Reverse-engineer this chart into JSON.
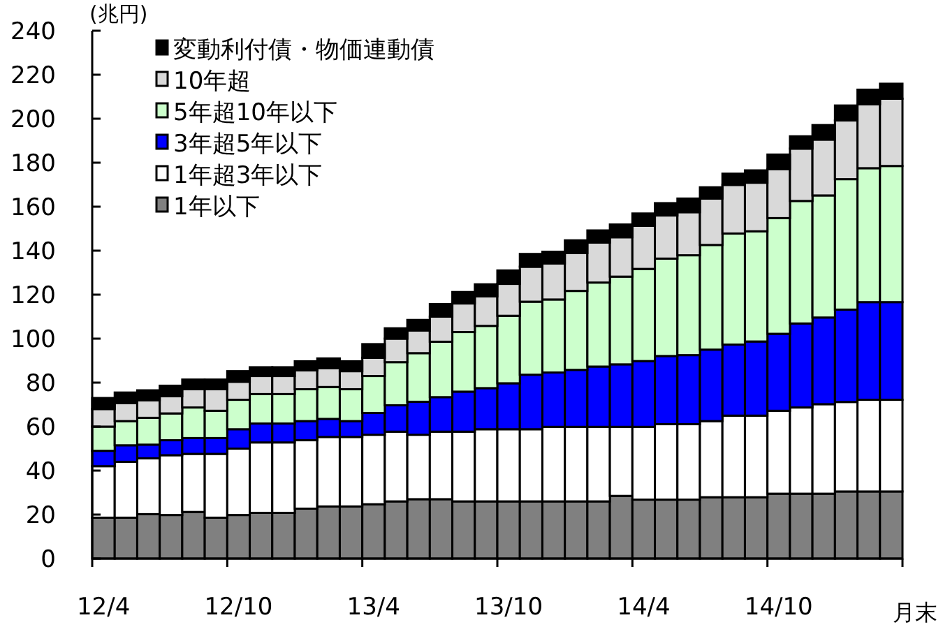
{
  "chart_data": {
    "type": "bar",
    "stacked": true,
    "ylabel": "(兆円)",
    "xlabel": "月末",
    "ylim": [
      0,
      240
    ],
    "yticks": [
      0,
      20,
      40,
      60,
      80,
      100,
      120,
      140,
      160,
      180,
      200,
      220,
      240
    ],
    "grid": false,
    "legend": "top left",
    "categories": [
      "12/4",
      null,
      null,
      null,
      null,
      null,
      "12/10",
      null,
      null,
      null,
      null,
      null,
      "13/4",
      null,
      null,
      null,
      null,
      null,
      "13/10",
      null,
      null,
      null,
      null,
      null,
      "14/4",
      null,
      null,
      null,
      null,
      null,
      "14/10",
      null,
      null,
      null,
      null,
      null
    ],
    "series": [
      {
        "name": "1年以下",
        "color": "#808080",
        "values": [
          18.6,
          18.6,
          20.2,
          19.8,
          21.2,
          18.6,
          19.8,
          20.8,
          20.8,
          22.7,
          23.7,
          23.7,
          24.7,
          26,
          27,
          27,
          26,
          26,
          26,
          26,
          26,
          26,
          26,
          28.5,
          26.8,
          26.8,
          26.8,
          27.9,
          27.9,
          27.9,
          29.5,
          29.5,
          29.5,
          30.5,
          30.5,
          30.5
        ]
      },
      {
        "name": "1年超3年以下",
        "color": "#ffffff",
        "values": [
          23.4,
          25.4,
          25.4,
          27.2,
          26.4,
          29,
          30.2,
          32,
          32,
          31.1,
          31.6,
          31.6,
          31.6,
          31.7,
          29.3,
          30.7,
          31.7,
          32.8,
          32.8,
          32.8,
          33.9,
          33.9,
          33.9,
          31.4,
          33.1,
          34.3,
          34.3,
          34.6,
          37.1,
          37.1,
          37.7,
          39.2,
          40.7,
          40.7,
          41.7,
          41.7
        ]
      },
      {
        "name": "3年超5年以下",
        "color": "#0000ff",
        "values": [
          7,
          7.5,
          6.2,
          6.8,
          7.2,
          7.2,
          8.8,
          8.6,
          8.6,
          8.7,
          8.2,
          7.2,
          9.9,
          12,
          15,
          15.7,
          18.2,
          18.7,
          20.9,
          24.8,
          24.7,
          25.9,
          27.4,
          28.4,
          29.9,
          31,
          31.4,
          32.5,
          32.3,
          33.7,
          35,
          38.2,
          39.4,
          42,
          44.4,
          44.4
        ]
      },
      {
        "name": "5年超10年以下",
        "color": "#ccffcc",
        "values": [
          11,
          11,
          12.2,
          12.2,
          13.9,
          12.4,
          13.4,
          13.4,
          13.4,
          14.5,
          14.5,
          14.5,
          16.8,
          19.6,
          22.1,
          25.2,
          27.1,
          28.3,
          30.7,
          33.2,
          33.2,
          35.9,
          38.2,
          39.9,
          41.9,
          44.3,
          45.4,
          47.6,
          50.5,
          50.1,
          52.6,
          55.7,
          55.5,
          59.3,
          60.9,
          61.9
        ]
      },
      {
        "name": "10年超",
        "color": "#d9d9d9",
        "values": [
          8,
          8.2,
          8,
          7.8,
          8.3,
          9.8,
          8.2,
          8.2,
          8.2,
          8.6,
          8.6,
          8.2,
          8.3,
          10.7,
          10.3,
          11.4,
          13,
          13.4,
          14.5,
          15.9,
          16.4,
          17.2,
          18.2,
          17.9,
          19.6,
          19.6,
          19.6,
          21.1,
          22.1,
          22.1,
          22.3,
          23.8,
          25.4,
          26.7,
          29.1,
          30.6
        ]
      },
      {
        "name": "変動利付債・物価連動債",
        "color": "#000000",
        "values": [
          5,
          4.8,
          4.5,
          4.8,
          4.4,
          4.4,
          4.8,
          4,
          4,
          4.1,
          4.4,
          4.5,
          6.2,
          4.7,
          4.8,
          5.7,
          5.2,
          5.5,
          6.1,
          5.8,
          5.3,
          5.8,
          5.5,
          5.8,
          5.6,
          5.6,
          6.2,
          5.1,
          5.1,
          5.6,
          6.6,
          5.6,
          6.6,
          6.8,
          6.6,
          6.8
        ]
      }
    ]
  }
}
